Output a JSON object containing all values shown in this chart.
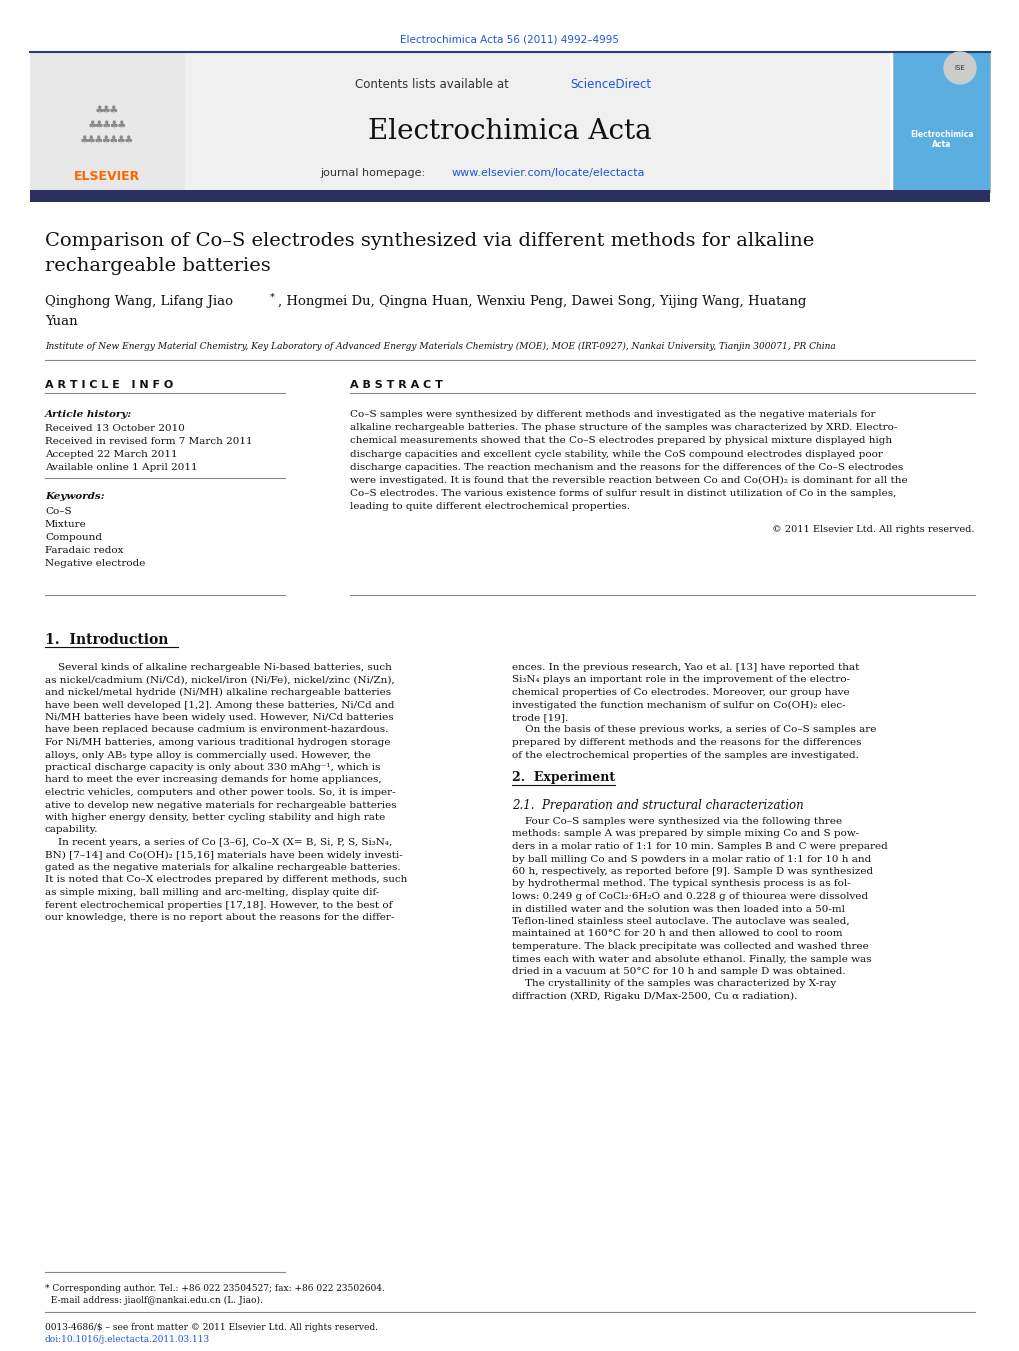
{
  "page_title": "Electrochimica Acta 56 (2011) 4992–4995",
  "journal_name": "Electrochimica Acta",
  "contents_text": "Contents lists available at ScienceDirect",
  "sciencedirect_color": "#1a56db",
  "journal_url": "journal homepage: www.elsevier.com/locate/electacta",
  "article_title_line1": "Comparison of Co–S electrodes synthesized via different methods for alkaline",
  "article_title_line2": "rechargeable batteries",
  "authors_line1": "Qinghong Wang, Lifang Jiao",
  "authors_star": "*",
  "authors_line1b": ", Hongmei Du, Qingna Huan, Wenxiu Peng, Dawei Song, Yijing Wang, Huatang",
  "authors_line2": "Yuan",
  "affiliation": "Institute of New Energy Material Chemistry, Key Laboratory of Advanced Energy Materials Chemistry (MOE), MOE (IRT-0927), Nankai University, Tianjin 300071, PR China",
  "article_info_header": "A R T I C L E   I N F O",
  "abstract_header": "A B S T R A C T",
  "article_history_label": "Article history:",
  "received": "Received 13 October 2010",
  "revised": "Received in revised form 7 March 2011",
  "accepted": "Accepted 22 March 2011",
  "available": "Available online 1 April 2011",
  "keywords_label": "Keywords:",
  "keywords": [
    "Co–S",
    "Mixture",
    "Compound",
    "Faradaic redox",
    "Negative electrode"
  ],
  "abstract_lines": [
    "Co–S samples were synthesized by different methods and investigated as the negative materials for",
    "alkaline rechargeable batteries. The phase structure of the samples was characterized by XRD. Electro-",
    "chemical measurements showed that the Co–S electrodes prepared by physical mixture displayed high",
    "discharge capacities and excellent cycle stability, while the CoS compound electrodes displayed poor",
    "discharge capacities. The reaction mechanism and the reasons for the differences of the Co–S electrodes",
    "were investigated. It is found that the reversible reaction between Co and Co(OH)₂ is dominant for all the",
    "Co–S electrodes. The various existence forms of sulfur result in distinct utilization of Co in the samples,",
    "leading to quite different electrochemical properties."
  ],
  "copyright": "© 2011 Elsevier Ltd. All rights reserved.",
  "section1_header": "1.  Introduction",
  "intro_col1_lines": [
    "    Several kinds of alkaline rechargeable Ni-based batteries, such",
    "as nickel/cadmium (Ni/Cd), nickel/iron (Ni/Fe), nickel/zinc (Ni/Zn),",
    "and nickel/metal hydride (Ni/MH) alkaline rechargeable batteries",
    "have been well developed [1,2]. Among these batteries, Ni/Cd and",
    "Ni/MH batteries have been widely used. However, Ni/Cd batteries",
    "have been replaced because cadmium is environment-hazardous.",
    "For Ni/MH batteries, among various traditional hydrogen storage",
    "alloys, only AB₅ type alloy is commercially used. However, the",
    "practical discharge capacity is only about 330 mAhg⁻¹, which is",
    "hard to meet the ever increasing demands for home appliances,",
    "electric vehicles, computers and other power tools. So, it is imper-",
    "ative to develop new negative materials for rechargeable batteries",
    "with higher energy density, better cycling stability and high rate",
    "capability.",
    "    In recent years, a series of Co [3–6], Co–X (X= B, Si, P, S, Si₃N₄,",
    "BN) [7–14] and Co(OH)₂ [15,16] materials have been widely investi-",
    "gated as the negative materials for alkaline rechargeable batteries.",
    "It is noted that Co–X electrodes prepared by different methods, such",
    "as simple mixing, ball milling and arc-melting, display quite dif-",
    "ferent electrochemical properties [17,18]. However, to the best of",
    "our knowledge, there is no report about the reasons for the differ-"
  ],
  "intro_col2_lines": [
    "ences. In the previous research, Yao et al. [13] have reported that",
    "Si₃N₄ plays an important role in the improvement of the electro-",
    "chemical properties of Co electrodes. Moreover, our group have",
    "investigated the function mechanism of sulfur on Co(OH)₂ elec-",
    "trode [19].",
    "    On the basis of these previous works, a series of Co–S samples are",
    "prepared by different methods and the reasons for the differences",
    "of the electrochemical properties of the samples are investigated."
  ],
  "section2_header": "2.  Experiment",
  "section21_header": "2.1.  Preparation and structural characterization",
  "sec21_lines": [
    "    Four Co–S samples were synthesized via the following three",
    "methods: sample A was prepared by simple mixing Co and S pow-",
    "ders in a molar ratio of 1:1 for 10 min. Samples B and C were prepared",
    "by ball milling Co and S powders in a molar ratio of 1:1 for 10 h and",
    "60 h, respectively, as reported before [9]. Sample D was synthesized",
    "by hydrothermal method. The typical synthesis process is as fol-",
    "lows: 0.249 g of CoCl₂·6H₂O and 0.228 g of thiourea were dissolved",
    "in distilled water and the solution was then loaded into a 50-ml",
    "Teflon-lined stainless steel autoclave. The autoclave was sealed,",
    "maintained at 160°C for 20 h and then allowed to cool to room",
    "temperature. The black precipitate was collected and washed three",
    "times each with water and absolute ethanol. Finally, the sample was",
    "dried in a vacuum at 50°C for 10 h and sample D was obtained.",
    "    The crystallinity of the samples was characterized by X-ray",
    "diffraction (XRD, Rigaku D/Max-2500, Cu α radiation)."
  ],
  "footnote1": "* Corresponding author. Tel.: +86 022 23504527; fax: +86 022 23502604.",
  "footnote2": "  E-mail address: jiaolf@nankai.edu.cn (L. Jiao).",
  "footnote3": "0013-4686/$ – see front matter © 2011 Elsevier Ltd. All rights reserved.",
  "footnote4": "doi:10.1016/j.electacta.2011.03.113",
  "bg_color": "#ffffff",
  "elsevier_orange": "#ff6600",
  "link_color": "#1a56db",
  "dark_bar_color": "#2c3060",
  "header_bg": "#f0f0f0"
}
